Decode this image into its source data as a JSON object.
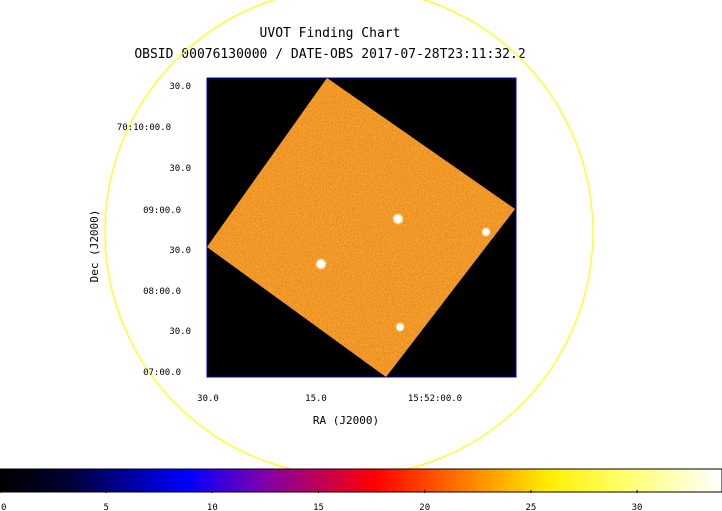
{
  "chart_data": {
    "type": "heatmap",
    "title": "UVOT Finding Chart",
    "subtitle": "OBSID 00076130000 / DATE-OBS 2017-07-28T23:11:32.2",
    "xlabel": "RA (J2000)",
    "ylabel": "Dec (J2000)",
    "x_ticks": [
      "30.0",
      "15.0",
      "15:52:00.0"
    ],
    "y_ticks": [
      "30.0",
      "70:10:00.0",
      "30.0",
      "09:00.0",
      "30.0",
      "08:00.0",
      "30.0",
      "07:00.0"
    ],
    "colorbar": {
      "min": 0,
      "max": 34,
      "ticks": [
        0,
        5,
        10,
        15,
        20,
        25,
        30
      ],
      "colormap": [
        "#000000",
        "#0000ff",
        "#ff0000",
        "#ffa500",
        "#ffff00",
        "#ffffff"
      ]
    },
    "field_of_view": "yellow circle",
    "bright_sources": 4,
    "colors": {
      "circle": "#ffff00",
      "frame": "#0000cc",
      "background": "#000000"
    }
  }
}
